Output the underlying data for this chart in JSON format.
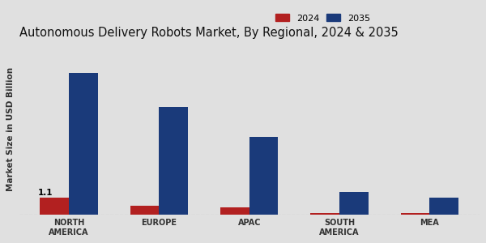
{
  "title": "Autonomous Delivery Robots Market, By Regional, 2024 & 2035",
  "ylabel": "Market Size in USD Billion",
  "categories": [
    "NORTH\nAMERICA",
    "EUROPE",
    "APAC",
    "SOUTH\nAMERICA",
    "MEA"
  ],
  "values_2024": [
    1.1,
    0.55,
    0.45,
    0.08,
    0.06
  ],
  "values_2035": [
    9.5,
    7.2,
    5.2,
    1.5,
    1.1
  ],
  "color_2024": "#b22020",
  "color_2035": "#1a3a7a",
  "annotation_label": "1.1",
  "annotation_index": 0,
  "background_color": "#e0e0e0",
  "bar_width": 0.32,
  "legend_labels": [
    "2024",
    "2035"
  ],
  "title_fontsize": 10.5,
  "axis_label_fontsize": 7.5,
  "tick_fontsize": 7,
  "legend_fontsize": 8,
  "ylim": [
    0,
    11.5
  ],
  "figwidth": 6.0,
  "figheight": 3.0
}
